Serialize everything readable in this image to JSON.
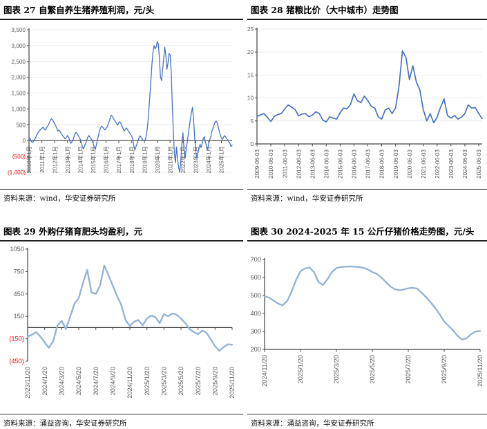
{
  "page": {
    "background": "#FFFFFF"
  },
  "colors": {
    "axis_line": "#404040",
    "axis_text": "#595959",
    "negative_label": "#FF0000",
    "gridline": "#E3E3E3",
    "series_dark_blue": "#4472C4",
    "series_light_blue": "#95B3D7"
  },
  "panels": [
    {
      "title": "图表 27 自繁自养生猪养殖利润，元/头",
      "source": "资料来源：wind，华安证券研究所"
    },
    {
      "title": "图表 28 猪粮比价（大中城市）走势图",
      "source": "资料来源：wind，华安证券研究所"
    },
    {
      "title": "图表 29 外购仔猪育肥头均盈利，元",
      "source": "资料来源：涌益咨询，华安证券研究所"
    },
    {
      "title": "图表 30 2024-2025 年 15 公斤仔猪价格走势图，元/头",
      "source": "资料来源：涌益咨询，华安证券研究所"
    }
  ],
  "chart_data": [
    {
      "type": "line",
      "title": "图表 27 自繁自养生猪养殖利润，元/头",
      "ylabel_unit": "元/头",
      "color": "#4472C4",
      "stroke_width": 1.3,
      "grid": true,
      "x_label_mode": "axis",
      "ylim": [
        -1000,
        3500
      ],
      "yticks": {
        "values": [
          3500,
          3000,
          2500,
          2000,
          1500,
          1000,
          500,
          0,
          -500,
          -1000
        ],
        "labels": [
          "3,500",
          "3,000",
          "2,500",
          "2,000",
          "1,500",
          "1,000",
          "500",
          "0",
          "(500)",
          "(1,000)"
        ]
      },
      "xticks": {
        "labels": [
          "2010年1月",
          "2011年1月",
          "2012年1月",
          "2013年1月",
          "2014年1月",
          "2015年1月",
          "2016年1月",
          "2017年1月",
          "2018年1月",
          "2019年1月",
          "2020年1月",
          "2021年1月",
          "2022年1月",
          "2023年1月",
          "2024年1月",
          "2025年1月"
        ],
        "pos": [
          0,
          0.0632,
          0.1263,
          0.1895,
          0.2526,
          0.3158,
          0.3789,
          0.4421,
          0.5053,
          0.5684,
          0.6316,
          0.6947,
          0.7579,
          0.8211,
          0.8842,
          0.9474
        ]
      },
      "x_start": "2010年1月",
      "x_end": "2025年11月",
      "values": [
        120,
        60,
        -20,
        -60,
        -30,
        20,
        80,
        160,
        230,
        280,
        320,
        360,
        390,
        420,
        380,
        340,
        380,
        430,
        490,
        560,
        640,
        690,
        660,
        600,
        540,
        470,
        380,
        300,
        340,
        290,
        230,
        180,
        130,
        90,
        60,
        110,
        160,
        110,
        10,
        -90,
        -40,
        10,
        110,
        210,
        260,
        210,
        160,
        110,
        40,
        -60,
        -200,
        -260,
        -160,
        -90,
        10,
        110,
        160,
        110,
        60,
        10,
        -90,
        -190,
        -280,
        -140,
        20,
        170,
        310,
        410,
        460,
        420,
        380,
        340,
        380,
        430,
        520,
        620,
        720,
        800,
        760,
        700,
        640,
        590,
        540,
        490,
        560,
        600,
        540,
        460,
        380,
        300,
        350,
        400,
        360,
        300,
        250,
        200,
        150,
        50,
        -150,
        -300,
        -200,
        -100,
        0,
        100,
        150,
        100,
        50,
        0,
        0,
        50,
        200,
        500,
        900,
        1400,
        1900,
        2400,
        2800,
        3000,
        2900,
        2950,
        3130,
        3050,
        2600,
        2000,
        1900,
        2250,
        2600,
        2950,
        2700,
        2250,
        2450,
        2750,
        2700,
        2200,
        1200,
        300,
        -400,
        -700,
        -200,
        -600,
        -850,
        -1000,
        -650,
        -100,
        250,
        -250,
        -550,
        -300,
        -50,
        200,
        450,
        700,
        900,
        1050,
        650,
        100,
        -350,
        -550,
        -400,
        -250,
        -120,
        -220,
        -80,
        60,
        120,
        -40,
        -160,
        -280,
        -120,
        20,
        120,
        280,
        380,
        480,
        580,
        620,
        560,
        440,
        300,
        180,
        80,
        40,
        110,
        160,
        110,
        60,
        10,
        -40,
        -90,
        -190,
        -140
      ]
    },
    {
      "type": "line",
      "title": "图表 28 猪粮比价（大中城市）走势图",
      "color": "#4472C4",
      "stroke_width": 1.7,
      "grid": true,
      "x_label_mode": "axis",
      "ylim": [
        0,
        25
      ],
      "yticks": {
        "values": [
          25,
          20,
          15,
          10,
          5,
          0
        ],
        "labels": [
          "25",
          "20",
          "15",
          "10",
          "5",
          "0"
        ]
      },
      "xticks": {
        "labels": [
          "2009-06-03",
          "2010-06-03",
          "2011-06-03",
          "2012-06-03",
          "2013-06-03",
          "2014-06-03",
          "2015-06-03",
          "2016-06-03",
          "2017-06-03",
          "2018-06-03",
          "2019-06-03",
          "2020-06-03",
          "2021-06-03",
          "2022-06-03",
          "2023-06-03",
          "2024-06-03",
          "2025-06-03"
        ],
        "pos": [
          0,
          0.0615,
          0.1231,
          0.1846,
          0.2462,
          0.3077,
          0.3692,
          0.4308,
          0.4923,
          0.5538,
          0.6154,
          0.6769,
          0.7385,
          0.8,
          0.8615,
          0.9231,
          0.9846
        ]
      },
      "x_start": "2009-06-03",
      "x_end": "2025-11",
      "values": [
        6.0,
        6.3,
        6.6,
        5.8,
        4.9,
        6.0,
        6.4,
        6.6,
        7.6,
        8.5,
        8.0,
        7.5,
        6.1,
        6.5,
        6.6,
        5.9,
        6.3,
        7.0,
        6.6,
        5.2,
        4.8,
        5.9,
        5.6,
        5.4,
        6.8,
        7.8,
        7.6,
        8.6,
        10.9,
        9.4,
        9.0,
        10.4,
        9.4,
        8.2,
        7.8,
        5.9,
        5.4,
        7.4,
        7.8,
        6.6,
        7.8,
        12.5,
        20.3,
        18.8,
        14.0,
        17.0,
        13.5,
        11.8,
        7.5,
        5.0,
        6.6,
        4.6,
        5.8,
        8.0,
        9.8,
        6.2,
        5.6,
        6.2,
        5.4,
        5.8,
        6.6,
        8.5,
        7.8,
        7.9,
        6.6,
        5.5
      ]
    },
    {
      "type": "line",
      "title": "图表 29 外购仔猪育肥头均盈利，元",
      "color": "#95B3D7",
      "stroke_width": 2.4,
      "grid": false,
      "x_label_mode": "bottom",
      "ylim": [
        -450,
        1050
      ],
      "yticks": {
        "values": [
          1050,
          750,
          450,
          150,
          -150,
          -450
        ],
        "labels": [
          "1050",
          "750",
          "450",
          "150",
          "(150)",
          "(450)"
        ]
      },
      "xticks": {
        "labels": [
          "2023/11/20",
          "2024/1/20",
          "2024/3/20",
          "2024/5/20",
          "2024/7/20",
          "2024/9/20",
          "2024/11/20",
          "2025/1/20",
          "2025/3/20",
          "2025/5/20",
          "2025/7/20",
          "2025/9/20",
          "2025/11/20"
        ],
        "pos": [
          0,
          0.0833,
          0.1667,
          0.25,
          0.3333,
          0.4167,
          0.5,
          0.5833,
          0.6667,
          0.75,
          0.8333,
          0.9167,
          1.0
        ]
      },
      "x_start": "2023/11/20",
      "x_end": "2025/11/20",
      "values": [
        -120,
        -95,
        -60,
        -120,
        -200,
        -270,
        -180,
        30,
        90,
        -20,
        150,
        320,
        395,
        600,
        770,
        470,
        450,
        560,
        830,
        700,
        560,
        420,
        300,
        100,
        20,
        80,
        100,
        30,
        120,
        160,
        140,
        60,
        180,
        150,
        190,
        170,
        120,
        60,
        -20,
        -60,
        -90,
        -40,
        -70,
        -160,
        -250,
        -310,
        -260,
        -225,
        -230
      ]
    },
    {
      "type": "line",
      "title": "图表 30 2024-2025 年 15 公斤仔猪价格走势图，元/头",
      "color": "#95B3D7",
      "stroke_width": 2.4,
      "grid": false,
      "x_label_mode": "axis",
      "ylim": [
        200,
        700
      ],
      "yticks": {
        "values": [
          700,
          600,
          500,
          400,
          300,
          200
        ],
        "labels": [
          "700",
          "600",
          "500",
          "400",
          "300",
          "200"
        ]
      },
      "xticks": {
        "labels": [
          "2024/11/20",
          "2025/1/20",
          "2025/3/20",
          "2025/5/20",
          "2025/7/20",
          "2025/9/20",
          "2025/11/20"
        ],
        "pos": [
          0,
          0.1667,
          0.3333,
          0.5,
          0.6667,
          0.8333,
          1.0
        ]
      },
      "x_start": "2024/11/20",
      "x_end": "2025/11/20",
      "values": [
        495,
        488,
        472,
        455,
        445,
        468,
        520,
        585,
        635,
        650,
        656,
        630,
        575,
        558,
        590,
        630,
        652,
        658,
        660,
        661,
        660,
        658,
        654,
        645,
        630,
        620,
        600,
        575,
        550,
        535,
        529,
        533,
        540,
        542,
        538,
        515,
        490,
        462,
        430,
        395,
        355,
        330,
        305,
        275,
        255,
        262,
        285,
        300,
        302
      ]
    }
  ]
}
